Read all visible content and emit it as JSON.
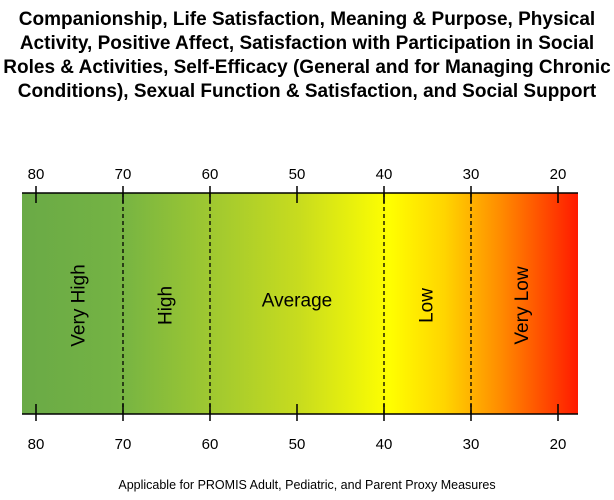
{
  "title_lines": [
    "Companionship, Life Satisfaction, Meaning & Purpose, Physical",
    "Activity, Positive Affect, Satisfaction with Participation in Social",
    "Roles & Activities, Self-Efficacy (General and for Managing Chronic",
    "Conditions), Sexual Function & Satisfaction, and Social Support"
  ],
  "scale": {
    "ticks": [
      "80",
      "70",
      "60",
      "50",
      "40",
      "30",
      "20"
    ],
    "solid_lines": [
      "70",
      "60"
    ],
    "dashed_lines": [
      "70",
      "60",
      "40",
      "30"
    ],
    "bands": [
      {
        "label": "Very High",
        "vertical": true
      },
      {
        "label": "High",
        "vertical": true
      },
      {
        "label": "Average",
        "vertical": false
      },
      {
        "label": "Low",
        "vertical": true
      },
      {
        "label": "Very Low",
        "vertical": true
      }
    ],
    "gradient_colors": [
      "#6aaa46",
      "#74b344",
      "#c8dc1e",
      "#ffff00",
      "#ffd500",
      "#ff8c00",
      "#ff1a00"
    ]
  },
  "footnote": "Applicable for PROMIS Adult, Pediatric, and Parent Proxy Measures"
}
